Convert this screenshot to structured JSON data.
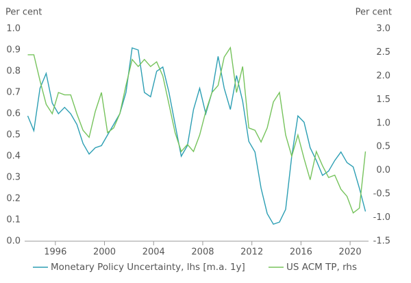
{
  "chart_data": {
    "type": "line",
    "ylabel": "Per cent",
    "y2label": "Per cent",
    "x": [
      1993.75,
      1994.25,
      1994.75,
      1995.25,
      1995.75,
      1996.25,
      1996.75,
      1997.25,
      1997.75,
      1998.25,
      1998.75,
      1999.25,
      1999.75,
      2000.25,
      2000.75,
      2001.25,
      2001.75,
      2002.25,
      2002.75,
      2003.25,
      2003.75,
      2004.25,
      2004.75,
      2005.25,
      2005.75,
      2006.25,
      2006.75,
      2007.25,
      2007.75,
      2008.25,
      2008.75,
      2009.25,
      2009.75,
      2010.25,
      2010.75,
      2011.25,
      2011.75,
      2012.25,
      2012.75,
      2013.25,
      2013.75,
      2014.25,
      2014.75,
      2015.25,
      2015.75,
      2016.25,
      2016.75,
      2017.25,
      2017.75,
      2018.25,
      2018.75,
      2019.25,
      2019.75,
      2020.25,
      2020.75,
      2021.25
    ],
    "series": [
      {
        "name": "Monetary Policy Uncertainty, lhs [m.a. 1y]",
        "color": "#2b9eb3",
        "axis": "y",
        "values": [
          0.59,
          0.52,
          0.72,
          0.79,
          0.65,
          0.6,
          0.63,
          0.6,
          0.55,
          0.46,
          0.41,
          0.44,
          0.45,
          0.5,
          0.55,
          0.6,
          0.7,
          0.91,
          0.9,
          0.7,
          0.68,
          0.8,
          0.82,
          0.7,
          0.55,
          0.4,
          0.45,
          0.62,
          0.72,
          0.6,
          0.7,
          0.87,
          0.72,
          0.62,
          0.78,
          0.66,
          0.47,
          0.42,
          0.25,
          0.13,
          0.08,
          0.09,
          0.15,
          0.4,
          0.59,
          0.56,
          0.44,
          0.38,
          0.31,
          0.33,
          0.38,
          0.42,
          0.37,
          0.35,
          0.25,
          0.14
        ]
      },
      {
        "name": "US ACM TP, rhs",
        "color": "#76c35c",
        "axis": "y2",
        "values": [
          2.45,
          2.45,
          1.9,
          1.4,
          1.2,
          1.65,
          1.6,
          1.6,
          1.2,
          0.85,
          0.7,
          1.25,
          1.65,
          0.8,
          0.9,
          1.2,
          1.8,
          2.35,
          2.2,
          2.35,
          2.2,
          2.3,
          2.0,
          1.4,
          0.8,
          0.4,
          0.55,
          0.4,
          0.75,
          1.25,
          1.65,
          1.8,
          2.4,
          2.6,
          1.65,
          2.2,
          0.9,
          0.85,
          0.6,
          0.9,
          1.45,
          1.65,
          0.75,
          0.3,
          0.75,
          0.25,
          -0.2,
          0.4,
          0.1,
          -0.15,
          -0.1,
          -0.4,
          -0.55,
          -0.9,
          -0.8,
          0.4
        ]
      }
    ],
    "xlim": [
      1993.5,
      2021.5
    ],
    "xticks": [
      1996,
      2000,
      2004,
      2008,
      2012,
      2016,
      2020
    ],
    "ylim": [
      0,
      1
    ],
    "yticks": [
      {
        "value": 0,
        "label": "0.0"
      },
      0.1,
      0.2,
      0.3,
      0.4,
      0.5,
      0.6,
      0.7,
      0.8,
      0.9,
      {
        "value": 1,
        "label": "1.0"
      }
    ],
    "y2lim": [
      -1.5,
      3
    ],
    "y2ticks": [
      -1.5,
      {
        "value": -1,
        "label": "-1.0"
      },
      -0.5,
      {
        "value": 0,
        "label": "0.0"
      },
      0.5,
      {
        "value": 1,
        "label": "1.0"
      },
      1.5,
      {
        "value": 2,
        "label": "2.0"
      },
      2.5,
      {
        "value": 3,
        "label": "3.0"
      }
    ],
    "grid": false,
    "legend": "bottom"
  }
}
